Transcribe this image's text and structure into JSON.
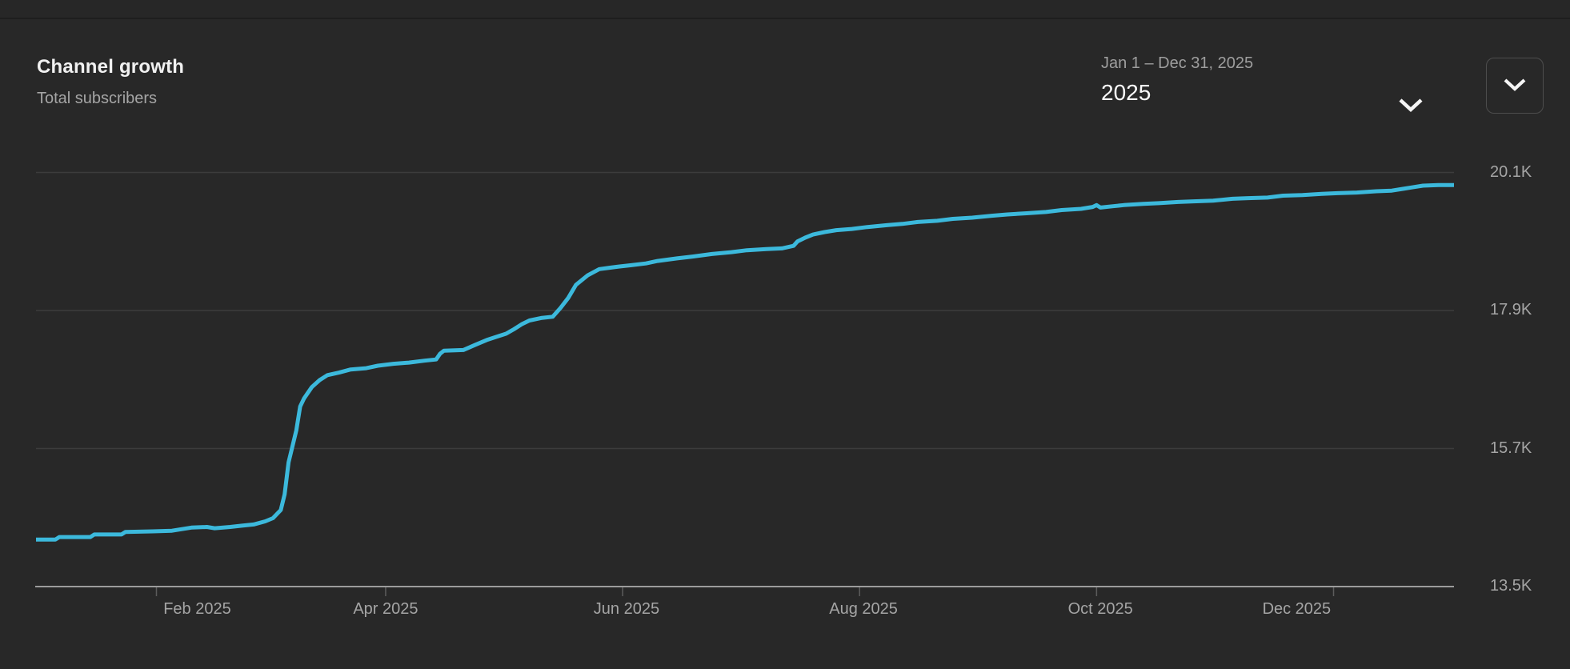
{
  "header": {
    "title": "Channel growth",
    "subtitle": "Total subscribers",
    "date_range": {
      "label": "Jan 1 – Dec 31, 2025",
      "selected": "2025"
    }
  },
  "icons": {
    "date_range_chevron": "chevron-down-icon",
    "collapse_chevron": "chevron-down-icon"
  },
  "colors": {
    "line": "#3cb9dc",
    "background": "#282828",
    "gridline": "#3c3c3c",
    "axis_line": "#9c9c9c",
    "tick": "#5c5c5c",
    "title_text": "#f1f1f1",
    "muted_text": "#a5a5a5"
  },
  "chart_data": {
    "type": "line",
    "title": "Channel growth",
    "ylabel": "Total subscribers",
    "legend_position": "none",
    "grid": true,
    "x_axis": {
      "unit": "day-of-year 2025",
      "range_days": [
        0,
        365
      ],
      "ticks": [
        {
          "label": "Feb 2025",
          "day": 31,
          "label_day": 41.5
        },
        {
          "label": "Apr 2025",
          "day": 90,
          "label_day": 90
        },
        {
          "label": "Jun 2025",
          "day": 151,
          "label_day": 152
        },
        {
          "label": "Aug 2025",
          "day": 212,
          "label_day": 213
        },
        {
          "label": "Oct 2025",
          "day": 273,
          "label_day": 274
        },
        {
          "label": "Dec 2025",
          "day": 334,
          "label_day": 324.5
        }
      ]
    },
    "y_axis": {
      "unit": "subscribers",
      "range": [
        13500,
        20100
      ],
      "ticks": [
        {
          "label": "20.1K",
          "value": 20100
        },
        {
          "label": "17.9K",
          "value": 17900
        },
        {
          "label": "15.7K",
          "value": 15700
        },
        {
          "label": "13.5K",
          "value": 13500
        }
      ]
    },
    "series": [
      {
        "name": "Total subscribers",
        "color": "#3cb9dc",
        "points": [
          [
            0,
            14250
          ],
          [
            5,
            14250
          ],
          [
            6,
            14290
          ],
          [
            14,
            14290
          ],
          [
            15,
            14330
          ],
          [
            22,
            14330
          ],
          [
            23,
            14370
          ],
          [
            30,
            14380
          ],
          [
            35,
            14390
          ],
          [
            40,
            14440
          ],
          [
            44,
            14450
          ],
          [
            46,
            14430
          ],
          [
            50,
            14450
          ],
          [
            53,
            14470
          ],
          [
            56,
            14490
          ],
          [
            59,
            14540
          ],
          [
            61,
            14590
          ],
          [
            63,
            14720
          ],
          [
            64,
            14970
          ],
          [
            65,
            15480
          ],
          [
            67,
            15990
          ],
          [
            68,
            16370
          ],
          [
            69,
            16500
          ],
          [
            71,
            16680
          ],
          [
            73,
            16790
          ],
          [
            75,
            16870
          ],
          [
            78,
            16910
          ],
          [
            81,
            16960
          ],
          [
            85,
            16980
          ],
          [
            88,
            17020
          ],
          [
            92,
            17050
          ],
          [
            96,
            17070
          ],
          [
            100,
            17100
          ],
          [
            103,
            17120
          ],
          [
            104,
            17210
          ],
          [
            105,
            17260
          ],
          [
            110,
            17270
          ],
          [
            113,
            17350
          ],
          [
            116,
            17430
          ],
          [
            119,
            17490
          ],
          [
            121,
            17530
          ],
          [
            123,
            17600
          ],
          [
            125,
            17680
          ],
          [
            127,
            17740
          ],
          [
            130,
            17780
          ],
          [
            133,
            17800
          ],
          [
            135,
            17940
          ],
          [
            137,
            18100
          ],
          [
            139,
            18310
          ],
          [
            142,
            18460
          ],
          [
            145,
            18560
          ],
          [
            150,
            18600
          ],
          [
            153,
            18620
          ],
          [
            157,
            18650
          ],
          [
            160,
            18690
          ],
          [
            165,
            18730
          ],
          [
            169,
            18760
          ],
          [
            174,
            18800
          ],
          [
            179,
            18830
          ],
          [
            183,
            18860
          ],
          [
            188,
            18880
          ],
          [
            192,
            18890
          ],
          [
            195,
            18930
          ],
          [
            196,
            19000
          ],
          [
            198,
            19060
          ],
          [
            200,
            19110
          ],
          [
            203,
            19150
          ],
          [
            206,
            19180
          ],
          [
            210,
            19200
          ],
          [
            214,
            19230
          ],
          [
            219,
            19260
          ],
          [
            223,
            19280
          ],
          [
            227,
            19310
          ],
          [
            232,
            19330
          ],
          [
            236,
            19360
          ],
          [
            241,
            19380
          ],
          [
            246,
            19410
          ],
          [
            250,
            19430
          ],
          [
            255,
            19450
          ],
          [
            260,
            19470
          ],
          [
            264,
            19500
          ],
          [
            269,
            19520
          ],
          [
            272,
            19550
          ],
          [
            273,
            19580
          ],
          [
            274,
            19540
          ],
          [
            277,
            19560
          ],
          [
            280,
            19580
          ],
          [
            285,
            19600
          ],
          [
            289,
            19610
          ],
          [
            294,
            19630
          ],
          [
            298,
            19640
          ],
          [
            303,
            19650
          ],
          [
            308,
            19680
          ],
          [
            312,
            19690
          ],
          [
            317,
            19700
          ],
          [
            321,
            19730
          ],
          [
            326,
            19740
          ],
          [
            331,
            19760
          ],
          [
            335,
            19770
          ],
          [
            340,
            19780
          ],
          [
            345,
            19800
          ],
          [
            349,
            19810
          ],
          [
            352,
            19840
          ],
          [
            354,
            19860
          ],
          [
            357,
            19890
          ],
          [
            361,
            19900
          ],
          [
            365,
            19900
          ]
        ]
      }
    ]
  }
}
